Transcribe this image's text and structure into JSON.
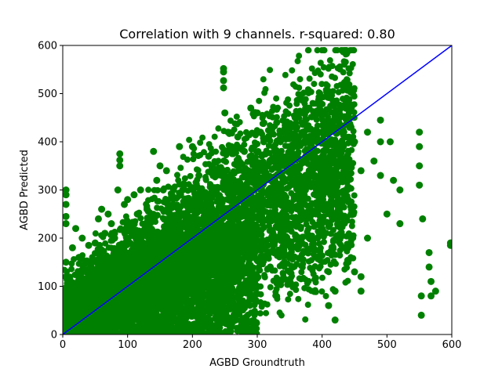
{
  "chart_data": {
    "type": "scatter",
    "title": "Correlation with 9 channels. r-squared: 0.80",
    "xlabel": "AGBD Groundtruth",
    "ylabel": "AGBD Predicted",
    "xlim": [
      0,
      600
    ],
    "ylim": [
      0,
      600
    ],
    "xticks": [
      "0",
      "100",
      "200",
      "300",
      "400",
      "500",
      "600"
    ],
    "yticks": [
      "0",
      "100",
      "200",
      "300",
      "400",
      "500",
      "600"
    ],
    "grid": false,
    "colors": {
      "points": "#008000",
      "line": "#0000ff"
    },
    "reference_line": {
      "x": [
        0,
        600
      ],
      "y": [
        0,
        600
      ]
    },
    "series": [
      {
        "marker": "circle",
        "points": [
          [
            5,
            300
          ],
          [
            5,
            290
          ],
          [
            5,
            270
          ],
          [
            5,
            245
          ],
          [
            5,
            230
          ],
          [
            5,
            150
          ],
          [
            5,
            120
          ],
          [
            5,
            90
          ],
          [
            5,
            60
          ],
          [
            5,
            30
          ],
          [
            15,
            180
          ],
          [
            20,
            220
          ],
          [
            25,
            160
          ],
          [
            30,
            200
          ],
          [
            30,
            130
          ],
          [
            40,
            185
          ],
          [
            40,
            100
          ],
          [
            50,
            190
          ],
          [
            50,
            80
          ],
          [
            55,
            240
          ],
          [
            60,
            260
          ],
          [
            65,
            210
          ],
          [
            70,
            250
          ],
          [
            75,
            230
          ],
          [
            80,
            200
          ],
          [
            85,
            300
          ],
          [
            85,
            40
          ],
          [
            88,
            375
          ],
          [
            88,
            362
          ],
          [
            88,
            350
          ],
          [
            95,
            270
          ],
          [
            100,
            280
          ],
          [
            110,
            290
          ],
          [
            115,
            250
          ],
          [
            120,
            300
          ],
          [
            130,
            260
          ],
          [
            140,
            380
          ],
          [
            145,
            320
          ],
          [
            150,
            350
          ],
          [
            155,
            300
          ],
          [
            160,
            340
          ],
          [
            170,
            270
          ],
          [
            180,
            390
          ],
          [
            185,
            300
          ],
          [
            190,
            250
          ],
          [
            200,
            390
          ],
          [
            210,
            330
          ],
          [
            225,
            370
          ],
          [
            230,
            300
          ],
          [
            240,
            240
          ],
          [
            248,
            552
          ],
          [
            248,
            545
          ],
          [
            248,
            527
          ],
          [
            248,
            512
          ],
          [
            250,
            460
          ],
          [
            255,
            420
          ],
          [
            260,
            390
          ],
          [
            270,
            410
          ],
          [
            280,
            380
          ],
          [
            290,
            470
          ],
          [
            300,
            460
          ],
          [
            305,
            420
          ],
          [
            310,
            400
          ],
          [
            320,
            360
          ],
          [
            330,
            440
          ],
          [
            340,
            420
          ],
          [
            350,
            390
          ],
          [
            360,
            400
          ],
          [
            370,
            420
          ],
          [
            380,
            470
          ],
          [
            385,
            380
          ],
          [
            395,
            420
          ],
          [
            405,
            420
          ],
          [
            410,
            360
          ],
          [
            420,
            400
          ],
          [
            425,
            430
          ],
          [
            430,
            330
          ],
          [
            440,
            280
          ],
          [
            450,
            400
          ],
          [
            460,
            340
          ],
          [
            470,
            420
          ],
          [
            480,
            360
          ],
          [
            490,
            445
          ],
          [
            490,
            400
          ],
          [
            490,
            330
          ],
          [
            500,
            250
          ],
          [
            505,
            400
          ],
          [
            510,
            320
          ],
          [
            520,
            300
          ],
          [
            520,
            230
          ],
          [
            550,
            420
          ],
          [
            550,
            390
          ],
          [
            550,
            350
          ],
          [
            550,
            310
          ],
          [
            553,
            80
          ],
          [
            553,
            40
          ],
          [
            555,
            240
          ],
          [
            565,
            170
          ],
          [
            565,
            140
          ],
          [
            568,
            110
          ],
          [
            568,
            80
          ],
          [
            575,
            90
          ],
          [
            598,
            190
          ],
          [
            598,
            185
          ],
          [
            20,
            50
          ],
          [
            40,
            60
          ],
          [
            60,
            70
          ],
          [
            80,
            90
          ],
          [
            100,
            110
          ],
          [
            120,
            130
          ],
          [
            140,
            150
          ],
          [
            160,
            170
          ],
          [
            180,
            190
          ],
          [
            200,
            200
          ],
          [
            220,
            210
          ],
          [
            240,
            230
          ],
          [
            260,
            250
          ],
          [
            280,
            270
          ],
          [
            300,
            280
          ],
          [
            320,
            300
          ],
          [
            340,
            320
          ],
          [
            360,
            330
          ],
          [
            380,
            340
          ],
          [
            400,
            350
          ],
          [
            420,
            360
          ],
          [
            150,
            80
          ],
          [
            180,
            60
          ],
          [
            200,
            40
          ],
          [
            220,
            30
          ],
          [
            250,
            50
          ],
          [
            270,
            80
          ],
          [
            300,
            100
          ],
          [
            320,
            140
          ],
          [
            350,
            160
          ],
          [
            380,
            200
          ],
          [
            400,
            220
          ],
          [
            410,
            60
          ],
          [
            420,
            30
          ],
          [
            420,
            90
          ],
          [
            440,
            180
          ],
          [
            450,
            130
          ],
          [
            460,
            120
          ],
          [
            470,
            200
          ],
          [
            460,
            90
          ],
          [
            440,
            150
          ]
        ]
      }
    ]
  }
}
